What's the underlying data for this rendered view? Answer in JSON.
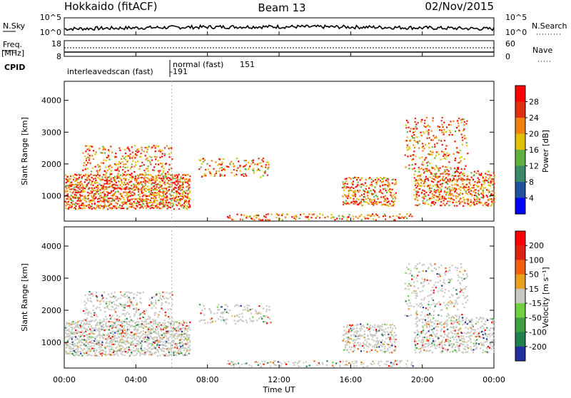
{
  "header": {
    "radar": "Hokkaido (fitACF)",
    "beam": "Beam 13",
    "date": "02/Nov/2015"
  },
  "nsky_panel": {
    "left_label": "N.Sky",
    "left_ticks": [
      "10^5",
      "10^0"
    ],
    "right_label": "N.Search",
    "right_ticks": [
      "10^5",
      "10^0"
    ]
  },
  "freq_panel": {
    "label_freq": "Freq.",
    "label_unit": "[MHz]",
    "left_ticks": [
      "18",
      "8"
    ],
    "right_label": "Nave",
    "right_ticks": [
      "60",
      "0"
    ]
  },
  "cpid_panel": {
    "label": "CPID",
    "segments": [
      {
        "name": "interleavedscan (fast)",
        "id": "-191",
        "start_hour": 0
      },
      {
        "name": "normal (fast)",
        "id": "151",
        "start_hour": 6.2
      }
    ]
  },
  "chart_data": [
    {
      "type": "heatmap",
      "panel": "power",
      "ylabel": "Slant Range [km]",
      "yticks": [
        1000,
        2000,
        3000,
        4000
      ],
      "ylim": [
        200,
        4600
      ],
      "xlim": [
        0,
        24
      ],
      "colorbar": {
        "label": "Power [dB]",
        "ticks": [
          "4",
          "8",
          "12",
          "16",
          "20",
          "24",
          "28"
        ],
        "colors": [
          "#0000ff",
          "#2050a0",
          "#3a8a6a",
          "#60b040",
          "#e0c000",
          "#f08010",
          "#e03010",
          "#ff0000"
        ]
      }
    },
    {
      "type": "heatmap",
      "panel": "velocity",
      "ylabel": "Slant Range [km]",
      "yticks": [
        1000,
        2000,
        3000,
        4000
      ],
      "ylim": [
        200,
        4600
      ],
      "xlim": [
        0,
        24
      ],
      "xlabel": "Time UT",
      "xticks": [
        "00:00",
        "04:00",
        "08:00",
        "12:00",
        "16:00",
        "20:00",
        "00:00"
      ],
      "colorbar": {
        "label": "Velocity [m s⁻¹]",
        "ticks": [
          "200",
          "100",
          "50",
          "15",
          "-15",
          "-50",
          "-100",
          "-200"
        ],
        "colors": [
          "#2030a0",
          "#208050",
          "#40a040",
          "#70d040",
          "#c8c8c0",
          "#e8a020",
          "#f06010",
          "#e02010",
          "#ff0000"
        ]
      }
    }
  ]
}
